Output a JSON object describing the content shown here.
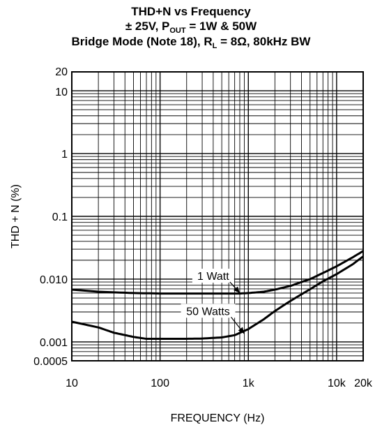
{
  "title": {
    "line1": "THD+N vs Frequency",
    "line2_prefix": "± 25V, P",
    "line2_sub": "OUT",
    "line2_suffix": " = 1W & 50W",
    "line3_prefix": "Bridge Mode (Note 18), R",
    "line3_sub": "L",
    "line3_suffix": " = 8Ω, 80kHz BW"
  },
  "chart_data": {
    "type": "line",
    "xlabel": "FREQUENCY (Hz)",
    "ylabel": "THD + N (%)",
    "xscale": "log",
    "yscale": "log",
    "xlim": [
      10,
      20000
    ],
    "ylim": [
      0.0005,
      20
    ],
    "grid": true,
    "x_ticks": [
      {
        "value": 10,
        "label": "10"
      },
      {
        "value": 100,
        "label": "100"
      },
      {
        "value": 1000,
        "label": "1k"
      },
      {
        "value": 10000,
        "label": "10k"
      },
      {
        "value": 20000,
        "label": "20k"
      }
    ],
    "y_ticks": [
      {
        "value": 20,
        "label": "20"
      },
      {
        "value": 10,
        "label": "10"
      },
      {
        "value": 1,
        "label": "1"
      },
      {
        "value": 0.1,
        "label": "0.1"
      },
      {
        "value": 0.01,
        "label": "0.010"
      },
      {
        "value": 0.001,
        "label": "0.001"
      },
      {
        "value": 0.0005,
        "label": "0.0005"
      }
    ],
    "series": [
      {
        "name": "1 Watt",
        "x": [
          10,
          20,
          50,
          100,
          200,
          500,
          800,
          1000,
          1500,
          2000,
          3000,
          5000,
          7000,
          10000,
          15000,
          20000
        ],
        "y": [
          0.0068,
          0.0063,
          0.006,
          0.0059,
          0.0059,
          0.0059,
          0.0059,
          0.006,
          0.0063,
          0.0068,
          0.0078,
          0.01,
          0.0125,
          0.016,
          0.022,
          0.028
        ]
      },
      {
        "name": "50 Watts",
        "x": [
          10,
          20,
          30,
          50,
          70,
          100,
          200,
          300,
          500,
          700,
          1000,
          1500,
          2000,
          3000,
          5000,
          7000,
          10000,
          15000,
          20000
        ],
        "y": [
          0.0021,
          0.0017,
          0.0014,
          0.0012,
          0.00112,
          0.00112,
          0.00112,
          0.00113,
          0.00118,
          0.00128,
          0.0016,
          0.0023,
          0.0031,
          0.0045,
          0.0069,
          0.0092,
          0.012,
          0.017,
          0.023
        ]
      }
    ],
    "annotations": [
      {
        "text": "1 Watt",
        "x": 400,
        "y": 0.0105
      },
      {
        "text": "50 Watts",
        "x": 350,
        "y": 0.0029
      }
    ]
  }
}
